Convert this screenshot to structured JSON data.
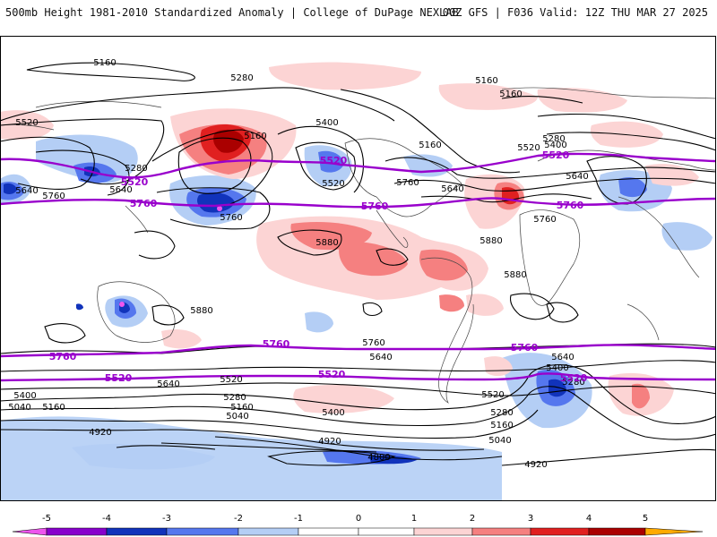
{
  "header": {
    "left": "500mb Height 1981-2010 Standardized Anomaly | College of DuPage NEXLAB",
    "right": "00Z GFS | F036 Valid: 12Z THU MAR 27 2025"
  },
  "colors": {
    "neg5": "#ee55ee",
    "neg4": "#8800cc",
    "neg3": "#1133bb",
    "neg2": "#5577ee",
    "neg1": "#b4cef5",
    "pos1": "#fcd4d4",
    "pos2": "#f58080",
    "pos3": "#e02020",
    "pos4": "#aa0000",
    "pos5": "#ffaa00",
    "contour": "#000000",
    "contour_highlight": "#9900cc",
    "coast": "#444444"
  },
  "contour_labels": {
    "black": [
      "5160",
      "5280",
      "5160",
      "5160",
      "5280",
      "5520",
      "5160",
      "5520",
      "5400",
      "5400",
      "5160",
      "5280",
      "5640",
      "5760",
      "5880",
      "5880",
      "5880",
      "5880",
      "5280",
      "5520",
      "5640",
      "5760",
      "5760",
      "5640",
      "5760",
      "5640",
      "5400",
      "5280",
      "5160",
      "5040",
      "5400",
      "5160",
      "5040",
      "5520",
      "5640",
      "5520",
      "5280",
      "5160",
      "5040",
      "4920",
      "4920",
      "4800",
      "4920",
      "5640",
      "5400",
      "5280",
      "5640",
      "5760"
    ],
    "purple": [
      "5520",
      "5520",
      "5760",
      "5760",
      "5520",
      "5760",
      "5760",
      "5760",
      "5520",
      "5520",
      "5520",
      "5520",
      "5760",
      "5760"
    ]
  },
  "colorbar": {
    "ticks": [
      "-5",
      "-4",
      "-3",
      "-2",
      "-1",
      "0",
      "1",
      "2",
      "3",
      "4",
      "5"
    ]
  }
}
